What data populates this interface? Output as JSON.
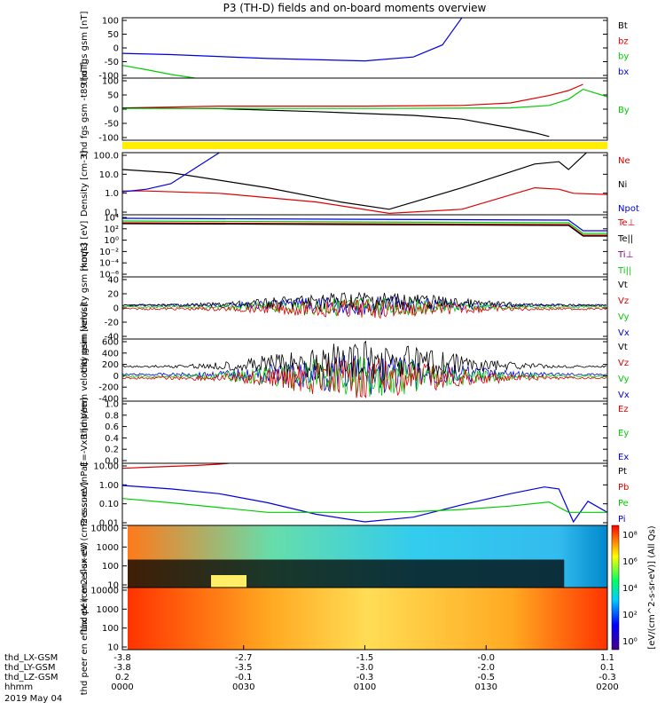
{
  "title": "P3 (TH-D) fields and on-board moments overview",
  "chart_data": [
    {
      "type": "line",
      "ylabel": "thd fgs gsm [nT]",
      "ylim": [
        -100,
        100
      ],
      "yticks": [
        "100",
        "50",
        "0",
        "-50",
        "-100"
      ],
      "legend": [
        {
          "name": "Bt",
          "color": "#000000"
        },
        {
          "name": "bz",
          "color": "#dd0000"
        },
        {
          "name": "by",
          "color": "#00cc00"
        },
        {
          "name": "bx",
          "color": "#0000dd"
        }
      ],
      "series": [
        {
          "name": "bx",
          "color": "#0000dd",
          "x": [
            0,
            0.1,
            0.3,
            0.5,
            0.6,
            0.66,
            0.7
          ],
          "y": [
            -18,
            -22,
            -35,
            -43,
            -30,
            10,
            100
          ]
        },
        {
          "name": "by",
          "color": "#00cc00",
          "x": [
            0,
            0.05,
            0.1,
            0.15
          ],
          "y": [
            -58,
            -72,
            -88,
            -100
          ]
        }
      ]
    },
    {
      "type": "line",
      "ylabel": "thd fgs gsm -t89 [nT]",
      "ylim": [
        -125,
        125
      ],
      "yticks": [
        "100",
        "50",
        "0",
        "-50",
        "-100"
      ],
      "legend": [
        {
          "name": "By",
          "color": "#00cc00"
        }
      ],
      "series": [
        {
          "name": "red",
          "color": "#dd0000",
          "x": [
            0,
            0.2,
            0.5,
            0.7,
            0.8,
            0.88,
            0.92,
            0.95
          ],
          "y": [
            5,
            12,
            12,
            15,
            25,
            55,
            75,
            100
          ]
        },
        {
          "name": "black",
          "color": "#000000",
          "x": [
            0,
            0.2,
            0.4,
            0.6,
            0.7,
            0.8,
            0.85,
            0.88
          ],
          "y": [
            5,
            2,
            -10,
            -25,
            -40,
            -75,
            -95,
            -110
          ]
        },
        {
          "name": "By",
          "color": "#00cc00",
          "x": [
            0,
            0.5,
            0.8,
            0.88,
            0.92,
            0.95,
            1
          ],
          "y": [
            3,
            3,
            5,
            15,
            40,
            80,
            50
          ]
        }
      ]
    },
    {
      "type": "line",
      "ylabel": "Density [cm-3]",
      "ylog": true,
      "ylim": [
        0.1,
        250
      ],
      "yticks": [
        "100.0",
        "10.0",
        "1.0",
        "0.1"
      ],
      "legend": [
        {
          "name": "Ne",
          "color": "#dd0000"
        },
        {
          "name": "Ni",
          "color": "#000000"
        },
        {
          "name": "Npot",
          "color": "#0000dd"
        }
      ],
      "series": [
        {
          "name": "Ni",
          "color": "#000000",
          "x": [
            0,
            0.1,
            0.3,
            0.45,
            0.55,
            0.7,
            0.85,
            0.9,
            0.92,
            0.96
          ],
          "y": [
            30,
            20,
            3,
            0.5,
            0.2,
            3,
            60,
            80,
            30,
            300
          ]
        },
        {
          "name": "Ne",
          "color": "#dd0000",
          "x": [
            0,
            0.05,
            0.2,
            0.4,
            0.55,
            0.7,
            0.85,
            0.9,
            0.93,
            1
          ],
          "y": [
            2,
            2,
            1.5,
            0.5,
            0.12,
            0.2,
            3,
            2.5,
            1.5,
            1.3
          ]
        },
        {
          "name": "Npot",
          "color": "#0000dd",
          "x": [
            0,
            0.05,
            0.1,
            0.2
          ],
          "y": [
            1.8,
            2.5,
            5,
            250
          ]
        }
      ]
    },
    {
      "type": "line",
      "ylabel": "moqt3 [eV]",
      "ylog": true,
      "yticks": [
        "10⁴",
        "10²",
        "10⁰",
        "10⁻²",
        "10⁻⁴",
        "10⁻⁶"
      ],
      "legend": [
        {
          "name": "Te⊥",
          "color": "#dd0000"
        },
        {
          "name": "Te||",
          "color": "#000000"
        },
        {
          "name": "Ti⊥",
          "color": "#880088"
        },
        {
          "name": "Ti||",
          "color": "#00cc00"
        }
      ]
    },
    {
      "type": "line",
      "ylabel": "thd peim velocity gsm [km/s]",
      "ylim": [
        -40,
        40
      ],
      "yticks": [
        "40",
        "20",
        "0",
        "-20",
        "-40"
      ],
      "legend": [
        {
          "name": "Vt",
          "color": "#000000"
        },
        {
          "name": "Vz",
          "color": "#dd0000"
        },
        {
          "name": "Vy",
          "color": "#00cc00"
        },
        {
          "name": "Vx",
          "color": "#0000dd"
        }
      ]
    },
    {
      "type": "line",
      "ylabel": "thd peem velocity gsm [km/s]",
      "ylim": [
        -400,
        600
      ],
      "yticks": [
        "600",
        "400",
        "200",
        "0",
        "-200",
        "-400"
      ],
      "legend": [
        {
          "name": "Vt",
          "color": "#000000"
        },
        {
          "name": "Vz",
          "color": "#dd0000"
        },
        {
          "name": "Vy",
          "color": "#00cc00"
        },
        {
          "name": "Vx",
          "color": "#0000dd"
        }
      ]
    },
    {
      "type": "line",
      "ylabel": "E=-VxB [mV/m]",
      "ylim": [
        0,
        1
      ],
      "yticks": [
        "1.0",
        "0.8",
        "0.6",
        "0.4",
        "0.2",
        "0.0"
      ],
      "legend": [
        {
          "name": "Ez",
          "color": "#dd0000"
        },
        {
          "name": "Ey",
          "color": "#00cc00"
        },
        {
          "name": "Ex",
          "color": "#0000dd"
        }
      ]
    },
    {
      "type": "line",
      "ylabel": "Pressure [nPa]",
      "ylog": true,
      "ylim": [
        0.003,
        25
      ],
      "yticks": [
        "10.00",
        "1.00",
        "0.10",
        "0.01"
      ],
      "legend": [
        {
          "name": "Pt",
          "color": "#000000"
        },
        {
          "name": "Pb",
          "color": "#dd0000"
        },
        {
          "name": "Pe",
          "color": "#00cc00"
        },
        {
          "name": "Pi",
          "color": "#0000dd"
        }
      ],
      "series": [
        {
          "name": "Pb",
          "color": "#dd0000",
          "x": [
            0,
            0.05,
            0.15,
            0.2,
            0.22
          ],
          "y": [
            12,
            14,
            18,
            22,
            25
          ]
        },
        {
          "name": "Pi",
          "color": "#0000dd",
          "x": [
            0,
            0.1,
            0.2,
            0.3,
            0.4,
            0.5,
            0.6,
            0.7,
            0.8,
            0.87,
            0.9,
            0.93,
            0.96,
            1
          ],
          "y": [
            1,
            0.6,
            0.3,
            0.08,
            0.015,
            0.005,
            0.01,
            0.06,
            0.3,
            0.8,
            0.6,
            0.005,
            0.1,
            0.02
          ]
        },
        {
          "name": "Pe",
          "color": "#00cc00",
          "x": [
            0,
            0.1,
            0.2,
            0.3,
            0.5,
            0.6,
            0.7,
            0.8,
            0.88,
            0.92,
            0.95,
            1
          ],
          "y": [
            0.15,
            0.08,
            0.04,
            0.02,
            0.02,
            0.022,
            0.03,
            0.05,
            0.09,
            0.02,
            0.02,
            0.02
          ]
        }
      ]
    },
    {
      "type": "heatmap",
      "ylabel": "thd peir en eflux eV (cm2-s-sr-eV)",
      "ylog": true,
      "yticks": [
        "10000",
        "1000",
        "100",
        "10"
      ]
    },
    {
      "type": "heatmap",
      "ylabel": "thd peer en eflux eV (cm2-s-sr-eV)",
      "ylog": true,
      "yticks": [
        "10000",
        "1000",
        "100",
        "10"
      ]
    }
  ],
  "colorbar": {
    "label": "[eV/(cm^2-s-sr-eV)] (All Qs)",
    "ticks": [
      "10⁸",
      "10⁶",
      "10⁴",
      "10²",
      "10⁰"
    ]
  },
  "xaxis": {
    "rows": [
      {
        "label": "thd_LX-GSM",
        "values": [
          "-3.8",
          "-2.7",
          "-1.5",
          "-0.0",
          "1.1"
        ]
      },
      {
        "label": "thd_LY-GSM",
        "values": [
          "-3.8",
          "-3.5",
          "-3.0",
          "-2.0",
          "0.1"
        ]
      },
      {
        "label": "thd_LZ-GSM",
        "values": [
          "0.2",
          "-0.1",
          "-0.3",
          "-0.5",
          "-0.3"
        ]
      },
      {
        "label": "hhmm",
        "values": [
          "0000",
          "0030",
          "0100",
          "0130",
          "0200"
        ]
      }
    ],
    "date": "2019 May 04"
  }
}
